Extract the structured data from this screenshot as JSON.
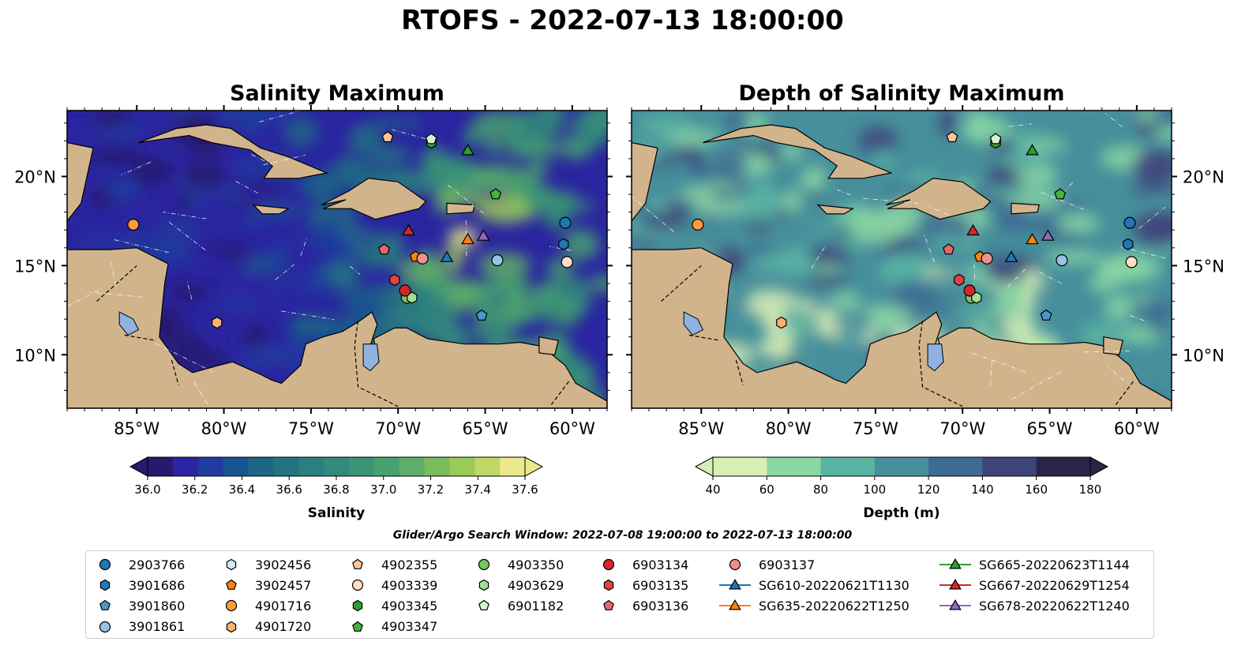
{
  "figure": {
    "title": "RTOFS - 2022-07-13 18:00:00",
    "search_window": "Glider/Argo Search Window: 2022-07-08 19:00:00 to 2022-07-13 18:00:00"
  },
  "chart_data": [
    {
      "type": "heatmap",
      "title": "Salinity Maximum",
      "x_ticks": [
        "85°W",
        "80°W",
        "75°W",
        "70°W",
        "65°W",
        "60°W"
      ],
      "y_ticks": [
        "20°N",
        "15°N",
        "10°N"
      ],
      "lon_range": [
        -89,
        -58
      ],
      "lat_range": [
        7,
        23.7
      ],
      "colorbar": {
        "label": "Salinity",
        "ticks": [
          "36.0",
          "36.2",
          "36.4",
          "36.6",
          "36.8",
          "37.0",
          "37.2",
          "37.4",
          "37.6"
        ],
        "range": [
          36.0,
          37.6
        ],
        "extend": "both",
        "colormap": "haline",
        "colors": [
          "#271a6c",
          "#2a25a0",
          "#1f3c9e",
          "#16558f",
          "#1d6685",
          "#257381",
          "#2c7f7f",
          "#33897b",
          "#3b9476",
          "#48a16f",
          "#5fae67",
          "#7abc5c",
          "#9aca58",
          "#bfd764",
          "#ebe98b"
        ]
      }
    },
    {
      "type": "heatmap",
      "title": "Depth of Salinity Maximum",
      "x_ticks": [
        "85°W",
        "80°W",
        "75°W",
        "70°W",
        "65°W",
        "60°W"
      ],
      "y_ticks": [
        "20°N",
        "15°N",
        "10°N"
      ],
      "lon_range": [
        -89,
        -58
      ],
      "lat_range": [
        7,
        23.7
      ],
      "colorbar": {
        "label": "Depth (m)",
        "ticks": [
          "40",
          "60",
          "80",
          "100",
          "120",
          "140",
          "160",
          "180"
        ],
        "range": [
          40,
          180
        ],
        "extend": "both",
        "colormap": "deep",
        "colors": [
          "#d7efb4",
          "#8ad7a3",
          "#59b4a2",
          "#478f9c",
          "#3e6b92",
          "#3e437a",
          "#2c2446"
        ]
      }
    }
  ],
  "markers": [
    {
      "id": "2903766",
      "lon": -60.4,
      "lat": 17.4,
      "shape": "circle",
      "color": "#1f77b4"
    },
    {
      "id": "3901686",
      "lon": -60.5,
      "lat": 16.2,
      "shape": "hexagon",
      "color": "#1f77b4"
    },
    {
      "id": "3901860",
      "lon": -65.2,
      "lat": 12.2,
      "shape": "pentagon",
      "color": "#4b97cb"
    },
    {
      "id": "3901861",
      "lon": -64.3,
      "lat": 15.3,
      "shape": "circle",
      "color": "#96c3e6"
    },
    {
      "id": "3902456",
      "lon": -60.3,
      "lat": 15.2,
      "shape": "hexagon",
      "color": "#d6e9f6"
    },
    {
      "id": "3902457",
      "lon": -69.0,
      "lat": 15.5,
      "shape": "pentagon",
      "color": "#ff7f0e"
    },
    {
      "id": "4901716",
      "lon": -85.2,
      "lat": 17.3,
      "shape": "circle",
      "color": "#ff9b3c"
    },
    {
      "id": "4901720",
      "lon": -80.4,
      "lat": 11.8,
      "shape": "hexagon",
      "color": "#ffb070"
    },
    {
      "id": "4902355",
      "lon": -70.6,
      "lat": 22.2,
      "shape": "pentagon",
      "color": "#ffc597"
    },
    {
      "id": "4903339",
      "lon": -60.3,
      "lat": 15.2,
      "shape": "circle",
      "color": "#ffe0c6"
    },
    {
      "id": "4903345",
      "lon": -68.1,
      "lat": 21.9,
      "shape": "hexagon",
      "color": "#2ca02c"
    },
    {
      "id": "4903347",
      "lon": -64.4,
      "lat": 19.0,
      "shape": "pentagon",
      "color": "#45b13f"
    },
    {
      "id": "4903350",
      "lon": -69.5,
      "lat": 13.2,
      "shape": "circle",
      "color": "#73c765"
    },
    {
      "id": "4903629",
      "lon": -69.2,
      "lat": 13.2,
      "shape": "hexagon",
      "color": "#a2df92"
    },
    {
      "id": "6901182",
      "lon": -68.1,
      "lat": 22.1,
      "shape": "pentagon",
      "color": "#d3f5c8"
    },
    {
      "id": "6903134",
      "lon": -69.6,
      "lat": 13.6,
      "shape": "circle",
      "color": "#d62728"
    },
    {
      "id": "6903135",
      "lon": -70.2,
      "lat": 14.2,
      "shape": "hexagon",
      "color": "#dd4444"
    },
    {
      "id": "6903136",
      "lon": -70.8,
      "lat": 15.9,
      "shape": "pentagon",
      "color": "#e56868"
    },
    {
      "id": "6903137",
      "lon": -68.6,
      "lat": 15.4,
      "shape": "circle",
      "color": "#ef8f8f"
    },
    {
      "id": "SG610-20220621T1130",
      "lon": -67.2,
      "lat": 15.5,
      "shape": "triangle",
      "color": "#1f77b4"
    },
    {
      "id": "SG635-20220622T1250",
      "lon": -66.0,
      "lat": 16.5,
      "shape": "triangle",
      "color": "#ff7f0e"
    },
    {
      "id": "SG665-20220623T1144",
      "lon": -66.0,
      "lat": 21.5,
      "shape": "triangle",
      "color": "#2ca02c"
    },
    {
      "id": "SG667-20220629T1254",
      "lon": -69.4,
      "lat": 17.0,
      "shape": "triangle",
      "color": "#d62728"
    },
    {
      "id": "SG678-20220622T1240",
      "lon": -65.1,
      "lat": 16.7,
      "shape": "triangle",
      "color": "#9467bd"
    }
  ],
  "legend_columns": [
    [
      "2903766",
      "3901686",
      "3901860",
      "3901861"
    ],
    [
      "3902456",
      "3902457",
      "4901716",
      "4901720"
    ],
    [
      "4902355",
      "4903339",
      "4903345",
      "4903347"
    ],
    [
      "4903350",
      "4903629",
      "6901182"
    ],
    [
      "6903134",
      "6903135",
      "6903136"
    ],
    [
      "6903137",
      "SG610-20220621T1130",
      "SG635-20220622T1250"
    ],
    [
      "SG665-20220623T1144",
      "SG667-20220629T1254",
      "SG678-20220622T1240"
    ]
  ],
  "colors": {
    "land": "#d2b48c",
    "lake": "#8fb2e0",
    "coast": "#000000",
    "gridline": "#ffffff"
  }
}
